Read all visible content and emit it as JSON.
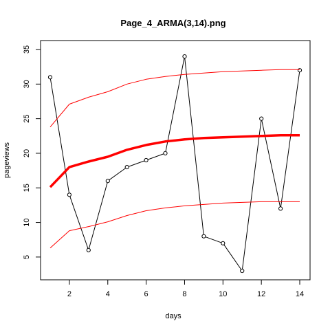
{
  "chart_data": {
    "type": "line",
    "title": "Page_4_ARMA(3,14).png",
    "xlabel": "days",
    "ylabel": "pageviews",
    "xlim": [
      1,
      14
    ],
    "ylim": [
      3,
      35
    ],
    "xticks": [
      2,
      4,
      6,
      8,
      10,
      12,
      14
    ],
    "yticks": [
      5,
      10,
      15,
      20,
      25,
      30,
      35
    ],
    "grid": false,
    "legend": "none",
    "x": [
      1,
      2,
      3,
      4,
      5,
      6,
      7,
      8,
      9,
      10,
      11,
      12,
      13,
      14
    ],
    "series": [
      {
        "style": "points-and-line",
        "color": "#000000",
        "values": [
          31,
          14,
          6,
          16,
          18,
          19,
          20,
          34,
          8,
          7,
          3,
          25,
          12,
          32
        ]
      },
      {
        "style": "forecast",
        "color": "#ff0000",
        "values": [
          15.1,
          18.0,
          18.8,
          19.5,
          20.5,
          21.2,
          21.7,
          22.0,
          22.2,
          22.3,
          22.4,
          22.5,
          22.6,
          22.6
        ]
      },
      {
        "style": "upper-bound",
        "color": "#ff0000",
        "values": [
          23.8,
          27.1,
          28.1,
          28.9,
          30.0,
          30.7,
          31.1,
          31.4,
          31.6,
          31.8,
          31.9,
          32.0,
          32.1,
          32.1
        ]
      },
      {
        "style": "lower-bound",
        "color": "#ff0000",
        "values": [
          6.3,
          8.8,
          9.4,
          10.1,
          11.0,
          11.7,
          12.1,
          12.4,
          12.6,
          12.8,
          12.9,
          13.0,
          13.0,
          13.0
        ]
      }
    ]
  }
}
